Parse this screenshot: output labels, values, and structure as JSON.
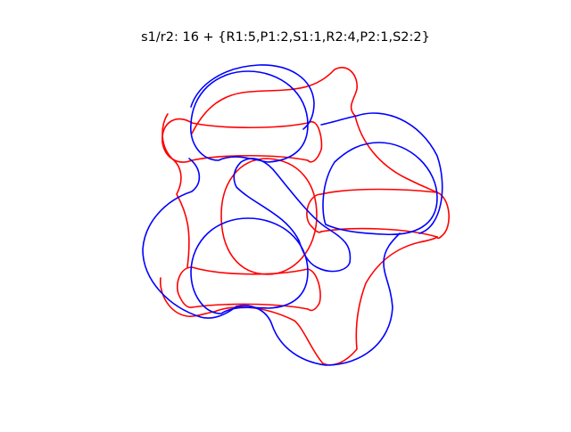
{
  "title": "s1/r2: 16 + {R1:5,P1:2,S1:1,R2:4,P2:1,S2:2}",
  "colors": {
    "red": "#ff0000",
    "blue": "#0000ff"
  }
}
